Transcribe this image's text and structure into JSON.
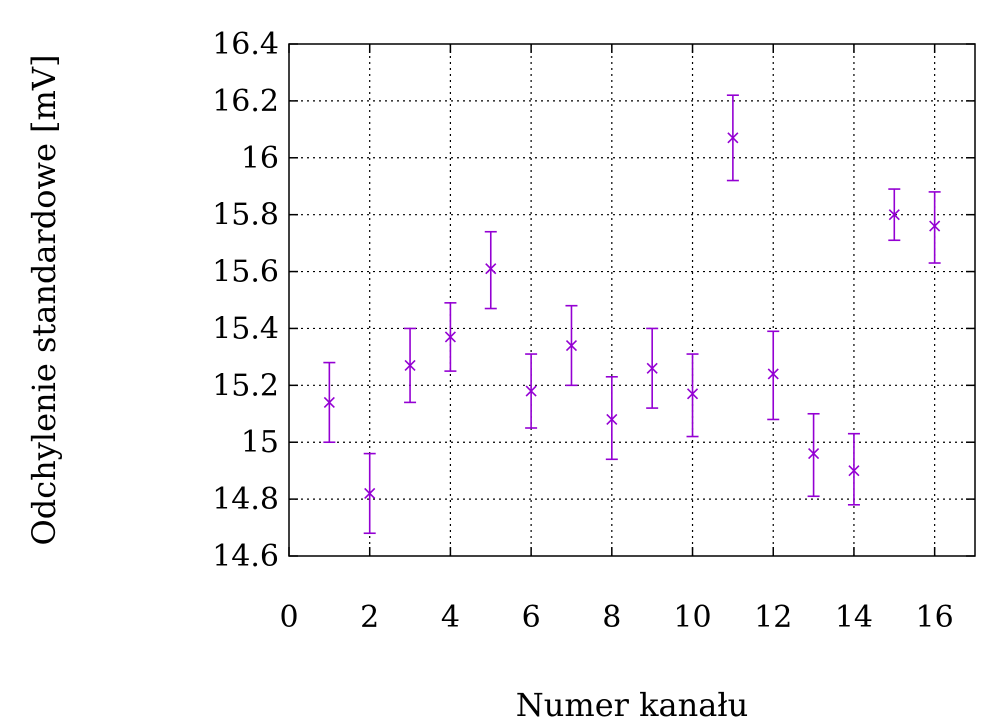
{
  "chart_data": {
    "type": "scatter",
    "title": "",
    "xlabel": "Numer kanału",
    "ylabel": "Odchylenie standardowe [mV]",
    "xlim": [
      0,
      17
    ],
    "ylim": [
      14.6,
      16.4
    ],
    "xticks": [
      0,
      2,
      4,
      6,
      8,
      10,
      12,
      14,
      16
    ],
    "xtick_labels": [
      "0",
      "2",
      "4",
      "6",
      "8",
      "10",
      "12",
      "14",
      "16"
    ],
    "yticks": [
      14.6,
      14.8,
      15.0,
      15.2,
      15.4,
      15.6,
      15.8,
      16.0,
      16.2,
      16.4
    ],
    "ytick_labels": [
      "14.6",
      "14.8",
      "15",
      "15.2",
      "15.4",
      "15.6",
      "15.8",
      "16",
      "16.2",
      "16.4"
    ],
    "grid": true,
    "marker": "x",
    "series": [
      {
        "color": "#9400d3",
        "x": [
          1,
          2,
          3,
          4,
          5,
          6,
          7,
          8,
          9,
          10,
          11,
          12,
          13,
          14,
          15,
          16
        ],
        "y": [
          15.14,
          14.82,
          15.27,
          15.37,
          15.61,
          15.18,
          15.34,
          15.08,
          15.26,
          15.17,
          16.07,
          15.24,
          14.96,
          14.9,
          15.8,
          15.76
        ],
        "yerr_low": [
          15.0,
          14.68,
          15.14,
          15.25,
          15.47,
          15.05,
          15.2,
          14.94,
          15.12,
          15.02,
          15.92,
          15.08,
          14.81,
          14.78,
          15.71,
          15.63
        ],
        "yerr_high": [
          15.28,
          14.96,
          15.4,
          15.49,
          15.74,
          15.31,
          15.48,
          15.23,
          15.4,
          15.31,
          16.22,
          15.39,
          15.1,
          15.03,
          15.89,
          15.88
        ]
      }
    ]
  }
}
